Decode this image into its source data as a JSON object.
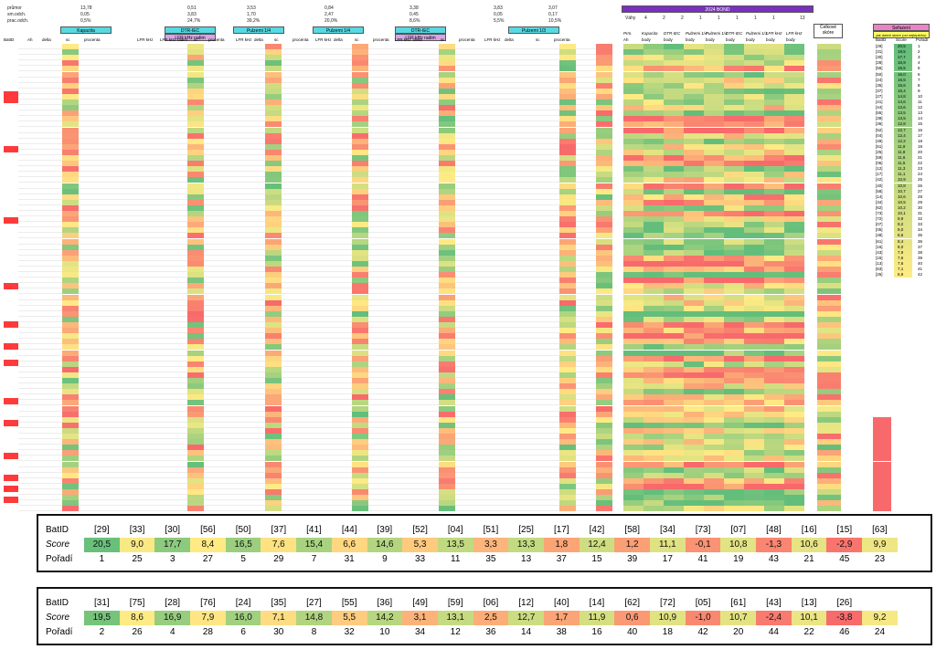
{
  "sheet": {
    "header_rows": [
      "průmor",
      "sm.odch.",
      "prac.odch."
    ],
    "top_values": [
      "13,78",
      "0,05",
      "0,5%",
      "0,51",
      "3,83",
      "24,7%",
      "3,53",
      "1,70",
      "39,2%",
      "0,84",
      "2,47",
      "20,0%",
      "3,38",
      "0,45",
      "8,6%",
      "3,83",
      "0,05",
      "5,5%",
      "3,07",
      "0,17",
      "10,5%"
    ],
    "panels": [
      {
        "label": "Kapacita",
        "sub": ""
      },
      {
        "label": "DTR-IEC",
        "sub": "LFR kHz radim"
      },
      {
        "label": "Pulzemi 1/4",
        "sub": "Pulse = 1,5A"
      },
      {
        "label": "Pulzemi 1/4",
        "sub": "Pulse = 1A"
      },
      {
        "label": "DTR-IEC",
        "sub": "LFR kHz radim"
      },
      {
        "label": "Pulzemi 1/3",
        "sub": ""
      }
    ],
    "column_headers": [
      "BatID",
      "Ah",
      "delta",
      "sc",
      "procenta",
      "LFR kHz",
      "LFR kHz radim",
      "sc",
      "procenta",
      "LFR kHz",
      "delta",
      "sc",
      "procenta",
      "LFR kHz",
      "delta",
      "sc",
      "procenta",
      "LFR kHz",
      "delta",
      "sc",
      "procenta",
      "LFR kHz",
      "delta",
      "sc",
      "procenta"
    ],
    "right_title": "2024 BOND",
    "weights_label": "Váhy",
    "weights": [
      "4",
      "2",
      "2",
      "1",
      "1",
      "1",
      "1",
      "1"
    ],
    "weights_total": "13",
    "right_headers": [
      "Prm.",
      "Kapacita",
      "DTR-IEC",
      "Pulzemi 1/4",
      "Pulzemi 1/4",
      "DTR-IEC",
      "Pulzemi 1/3",
      "LFR kHz",
      "LFR kHz"
    ],
    "right_sub": [
      "Ah",
      "body",
      "body",
      "body",
      "body",
      "body",
      "body",
      "body",
      "body"
    ],
    "celkove_label": "Celkové skóre",
    "seznam_label": "Seřazení",
    "seznam_sub": "jak dobré skóre (od nejlepšího)",
    "seznam_headers": [
      "BatID",
      "Score",
      "Pořadí"
    ],
    "rank_ids": [
      "[29]",
      "[31]",
      "[30]",
      "[28]",
      "[56]",
      "[50]",
      "[24]",
      "[35]",
      "[37]",
      "[27]",
      "[41]",
      "[44]",
      "[55]",
      "[39]",
      "[36]",
      "[52]",
      "[04]",
      "[49]",
      "[51]",
      "[25]",
      "[59]",
      "[06]",
      "[12]",
      "[17]",
      "[42]",
      "[40]",
      "[58]",
      "[14]",
      "[34]",
      "[62]",
      "[73]",
      "[72]",
      "[07]",
      "[05]",
      "[48]",
      "[61]",
      "[16]",
      "[43]",
      "[15]",
      "[13]",
      "[63]",
      "[26]"
    ],
    "rank_scores": [
      "20,5",
      "19,5",
      "17,7",
      "16,9",
      "16,5",
      "16,0",
      "16,5",
      "15,6",
      "15,4",
      "14,8",
      "14,6",
      "13,6",
      "13,5",
      "13,5",
      "12,8",
      "12,7",
      "12,4",
      "12,2",
      "11,9",
      "11,8",
      "11,6",
      "11,5",
      "11,3",
      "11,1",
      "10,9",
      "10,8",
      "10,7",
      "10,6",
      "10,5",
      "10,2",
      "10,1",
      "9,9",
      "9,2",
      "9,0",
      "8,6",
      "8,4",
      "8,0",
      "7,9",
      "7,6",
      "7,6",
      "7,1",
      "6,9"
    ]
  },
  "table1": {
    "label_batid": "BatID",
    "label_score": "Score",
    "label_rank": "Pořadí",
    "ids": [
      "[29]",
      "[33]",
      "[30]",
      "[56]",
      "[50]",
      "[37]",
      "[41]",
      "[44]",
      "[39]",
      "[52]",
      "[04]",
      "[51]",
      "[25]",
      "[17]",
      "[42]",
      "[58]",
      "[34]",
      "[73]",
      "[07]",
      "[48]",
      "[16]",
      "[15]",
      "[63]"
    ],
    "scores": [
      "20,5",
      "9,0",
      "17,7",
      "8,4",
      "16,5",
      "7,6",
      "15,4",
      "6,6",
      "14,6",
      "5,3",
      "13,5",
      "3,3",
      "13,3",
      "1,8",
      "12,4",
      "1,2",
      "11,1",
      "-0,1",
      "10,8",
      "-1,3",
      "10,6",
      "-2,9",
      "9,9"
    ],
    "ranks": [
      "1",
      "25",
      "3",
      "27",
      "5",
      "29",
      "7",
      "31",
      "9",
      "33",
      "11",
      "35",
      "13",
      "37",
      "15",
      "39",
      "17",
      "41",
      "19",
      "43",
      "21",
      "45",
      "23"
    ]
  },
  "table2": {
    "label_batid": "BatID",
    "label_score": "Score",
    "label_rank": "Pořadí",
    "ids": [
      "[31]",
      "[75]",
      "[28]",
      "[76]",
      "[24]",
      "[35]",
      "[27]",
      "[55]",
      "[36]",
      "[49]",
      "[59]",
      "[06]",
      "[12]",
      "[40]",
      "[14]",
      "[62]",
      "[72]",
      "[05]",
      "[61]",
      "[43]",
      "[13]",
      "[26]"
    ],
    "scores": [
      "19,5",
      "8,6",
      "16,9",
      "7,9",
      "16,0",
      "7,1",
      "14,8",
      "5,5",
      "14,2",
      "3,1",
      "13,1",
      "2,5",
      "12,7",
      "1,7",
      "11,9",
      "0,6",
      "10,9",
      "-1,0",
      "10,7",
      "-2,4",
      "10,1",
      "-3,8",
      "9,2"
    ],
    "ranks": [
      "2",
      "26",
      "4",
      "28",
      "6",
      "30",
      "8",
      "32",
      "10",
      "34",
      "12",
      "36",
      "14",
      "38",
      "16",
      "40",
      "18",
      "42",
      "20",
      "44",
      "22",
      "46",
      "24"
    ]
  },
  "colors": {
    "green": "#63be7b",
    "yellow": "#ffeb84",
    "red": "#f8696b",
    "cyan": "#57d9e3",
    "purple": "#7a2fbf",
    "pink": "#e985c6"
  }
}
